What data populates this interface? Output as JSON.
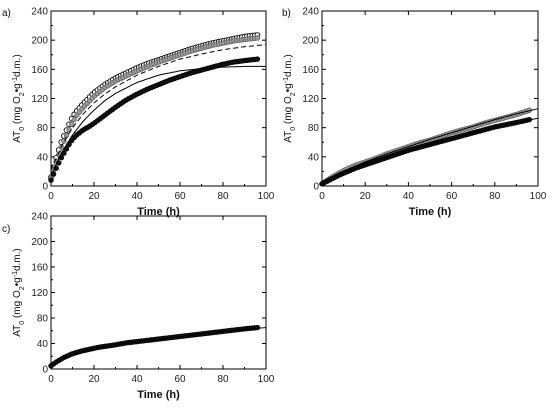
{
  "chart_data": [
    {
      "type": "scatter",
      "panel_label": "a)",
      "xlabel": "Time (h)",
      "ylabel": "AT0 (mg O2•g-1d.m.)",
      "xlim": [
        0,
        100
      ],
      "ylim": [
        0,
        240
      ],
      "xticks": [
        0,
        20,
        40,
        60,
        80,
        100
      ],
      "yticks": [
        0,
        40,
        80,
        120,
        160,
        200,
        240
      ],
      "series": [
        {
          "marker": "open-circle",
          "x": [
            0,
            2,
            5,
            8,
            10,
            12,
            15,
            18,
            20,
            25,
            30,
            35,
            40,
            45,
            50,
            55,
            60,
            65,
            70,
            75,
            80,
            85,
            90,
            96
          ],
          "y": [
            12,
            35,
            62,
            82,
            95,
            103,
            113,
            122,
            128,
            139,
            148,
            155,
            162,
            168,
            173,
            178,
            183,
            188,
            192,
            196,
            199,
            202,
            205,
            207
          ]
        },
        {
          "marker": "gray-circle",
          "x": [
            0,
            2,
            5,
            8,
            10,
            12,
            15,
            18,
            20,
            25,
            30,
            35,
            40,
            45,
            50,
            55,
            60,
            65,
            70,
            75,
            80,
            85,
            90,
            96
          ],
          "y": [
            10,
            30,
            55,
            75,
            87,
            97,
            108,
            117,
            123,
            135,
            144,
            151,
            158,
            164,
            170,
            175,
            180,
            185,
            189,
            193,
            196,
            199,
            201,
            203
          ]
        },
        {
          "marker": "filled-circle",
          "x": [
            0,
            2,
            5,
            8,
            10,
            12,
            15,
            18,
            20,
            25,
            30,
            35,
            40,
            45,
            50,
            55,
            60,
            65,
            70,
            75,
            80,
            85,
            90,
            96
          ],
          "y": [
            8,
            22,
            40,
            55,
            64,
            70,
            77,
            82,
            86,
            97,
            108,
            118,
            126,
            133,
            139,
            145,
            150,
            155,
            159,
            163,
            167,
            170,
            172,
            174
          ]
        }
      ],
      "fits": [
        {
          "style": "dashed",
          "x": [
            0,
            5,
            10,
            15,
            20,
            25,
            30,
            40,
            50,
            60,
            70,
            80,
            90,
            100
          ],
          "y": [
            22,
            55,
            80,
            99,
            114,
            126,
            136,
            152,
            164,
            174,
            181,
            187,
            191,
            194
          ]
        },
        {
          "style": "solid",
          "x": [
            0,
            5,
            10,
            15,
            20,
            25,
            30,
            40,
            50,
            60,
            70,
            80,
            90,
            100
          ],
          "y": [
            14,
            46,
            70,
            89,
            104,
            117,
            127,
            142,
            152,
            158,
            161,
            163,
            164,
            164
          ]
        }
      ]
    },
    {
      "type": "scatter",
      "panel_label": "b)",
      "xlabel": "Time (h)",
      "ylabel": "AT0 (mg O2•g-1d.m.)",
      "xlim": [
        0,
        100
      ],
      "ylim": [
        0,
        240
      ],
      "xticks": [
        0,
        20,
        40,
        60,
        80,
        100
      ],
      "yticks": [
        0,
        40,
        80,
        120,
        160,
        200,
        240
      ],
      "series": [
        {
          "marker": "gray-circle",
          "x": [
            0,
            4,
            8,
            12,
            16,
            20,
            25,
            30,
            35,
            40,
            45,
            50,
            55,
            60,
            65,
            70,
            75,
            80,
            85,
            90,
            96
          ],
          "y": [
            3,
            11,
            18,
            24,
            29,
            33,
            38,
            44,
            49,
            54,
            59,
            63,
            68,
            73,
            77,
            81,
            86,
            90,
            94,
            98,
            104
          ]
        },
        {
          "marker": "filled-circle",
          "x": [
            0,
            4,
            8,
            12,
            16,
            20,
            25,
            30,
            35,
            40,
            45,
            50,
            55,
            60,
            65,
            70,
            75,
            80,
            85,
            90,
            96
          ],
          "y": [
            3,
            9,
            15,
            20,
            25,
            29,
            34,
            39,
            44,
            49,
            53,
            57,
            61,
            65,
            69,
            73,
            77,
            81,
            84,
            87,
            91
          ]
        }
      ],
      "fits": [
        {
          "style": "solid",
          "x": [
            0,
            10,
            20,
            30,
            40,
            50,
            60,
            70,
            80,
            90,
            100
          ],
          "y": [
            4,
            20,
            33,
            44,
            54,
            64,
            73,
            82,
            91,
            99,
            106
          ]
        },
        {
          "style": "solid",
          "x": [
            0,
            10,
            20,
            30,
            40,
            50,
            60,
            70,
            80,
            90,
            100
          ],
          "y": [
            3,
            18,
            30,
            40,
            49,
            57,
            65,
            73,
            80,
            87,
            93
          ]
        }
      ]
    },
    {
      "type": "scatter",
      "panel_label": "c)",
      "xlabel": "Time (h)",
      "ylabel": "AT0 (mg O2•g-1d.m.)",
      "xlim": [
        0,
        100
      ],
      "ylim": [
        0,
        240
      ],
      "xticks": [
        0,
        20,
        40,
        60,
        80,
        100
      ],
      "yticks": [
        0,
        40,
        80,
        120,
        160,
        200,
        240
      ],
      "series": [
        {
          "marker": "filled-circle",
          "x": [
            0,
            2,
            4,
            6,
            8,
            10,
            14,
            18,
            22,
            26,
            30,
            35,
            40,
            45,
            50,
            55,
            60,
            65,
            70,
            75,
            80,
            85,
            90,
            96
          ],
          "y": [
            5,
            10,
            14,
            18,
            21,
            24,
            28,
            31,
            34,
            36,
            38,
            41,
            43,
            45,
            47,
            49,
            51,
            53,
            55,
            57,
            59,
            61,
            63,
            65
          ]
        }
      ],
      "fits": [
        {
          "style": "solid",
          "x": [
            0,
            5,
            10,
            20,
            30,
            40,
            50,
            60,
            70,
            80,
            90,
            100
          ],
          "y": [
            5,
            16,
            23,
            32,
            38,
            43,
            47,
            51,
            55,
            59,
            62,
            65
          ]
        }
      ]
    }
  ]
}
